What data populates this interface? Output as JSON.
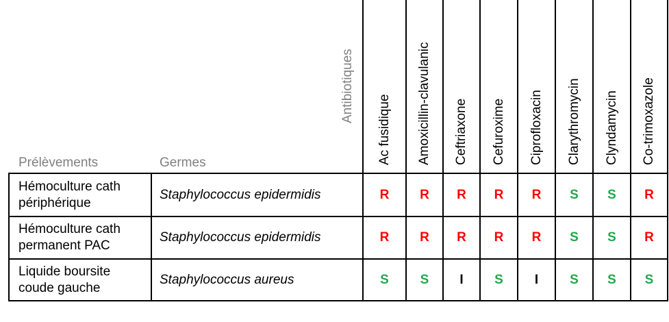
{
  "header": {
    "antibiotiques_label": "Antibiotiques",
    "prelevements_label": "Prélèvements",
    "germes_label": "Germes",
    "antibiotics": [
      "Ac fusidique",
      "Amoxicillin-clavulanic",
      "Ceftriaxone",
      "Cefuroxime",
      "Ciprofloxacin",
      "Clarythromycin",
      "Clyndamycin",
      "Co-trimoxazole"
    ]
  },
  "colors": {
    "R": "#ff0000",
    "S": "#22a84a",
    "I": "#000000"
  },
  "rows": [
    {
      "prelevement": [
        "Hémoculture cath",
        "périphérique"
      ],
      "germe": "Staphylococcus epidermidis",
      "results": [
        "R",
        "R",
        "R",
        "R",
        "R",
        "S",
        "S",
        "R"
      ]
    },
    {
      "prelevement": [
        "Hémoculture cath",
        "permanent PAC"
      ],
      "germe": "Staphylococcus epidermidis",
      "results": [
        "R",
        "R",
        "R",
        "R",
        "R",
        "S",
        "S",
        "R"
      ]
    },
    {
      "prelevement": [
        "Liquide boursite",
        "coude gauche"
      ],
      "germe": "Staphylococcus aureus",
      "results": [
        "S",
        "S",
        "I",
        "S",
        "I",
        "S",
        "S",
        "S"
      ]
    }
  ]
}
